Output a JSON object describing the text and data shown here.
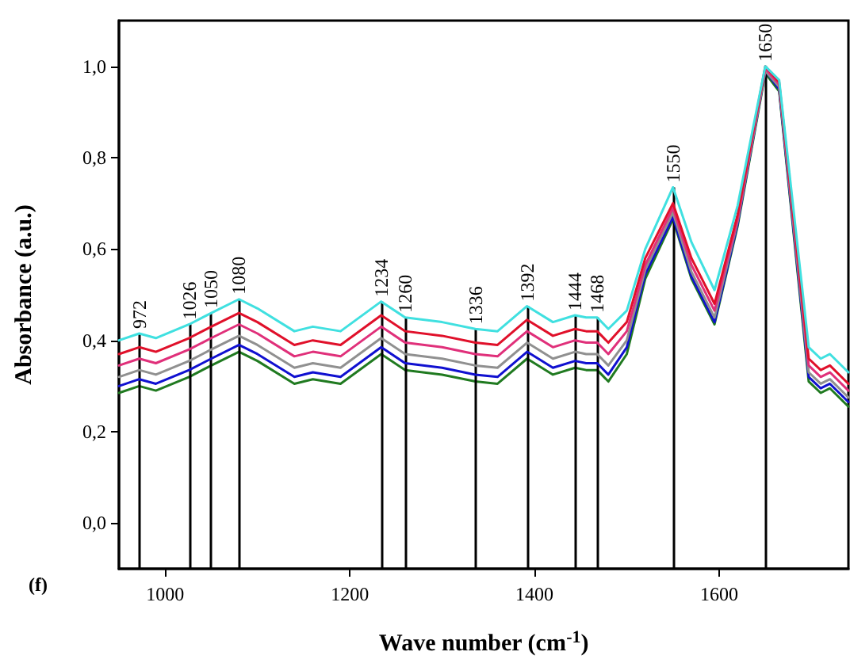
{
  "chart_data": {
    "type": "line",
    "xlabel": "Wave number (cm$^{-1}$)",
    "ylabel": "Absorbance (a.u.)",
    "annotations": [
      "(f)"
    ],
    "x": [
      950,
      972,
      990,
      1026,
      1050,
      1080,
      1100,
      1140,
      1160,
      1190,
      1234,
      1260,
      1300,
      1336,
      1360,
      1392,
      1420,
      1444,
      1456,
      1468,
      1480,
      1500,
      1520,
      1550,
      1570,
      1595,
      1620,
      1650,
      1665,
      1697,
      1710,
      1720,
      1740
    ],
    "xlim": [
      950,
      1740
    ],
    "xticks": [
      1000,
      1200,
      1400,
      1600
    ],
    "ylim": [
      -0.1,
      1.1
    ],
    "yticks": [
      {
        "value": 0,
        "label": "0,0"
      },
      {
        "value": 0.2,
        "label": "0,2"
      },
      {
        "value": 0.4,
        "label": "0,4"
      },
      {
        "value": 0.6,
        "label": "0,6"
      },
      {
        "value": 0.8,
        "label": "0,8"
      },
      {
        "value": 1,
        "label": "1,0"
      }
    ],
    "grid": false,
    "marker": "none",
    "line_style": "solid",
    "series": [
      {
        "color": "#40e0e0",
        "values": [
          0.4,
          0.415,
          0.405,
          0.435,
          0.46,
          0.49,
          0.47,
          0.42,
          0.43,
          0.42,
          0.485,
          0.45,
          0.44,
          0.425,
          0.42,
          0.475,
          0.44,
          0.455,
          0.45,
          0.45,
          0.425,
          0.465,
          0.6,
          0.735,
          0.615,
          0.51,
          0.695,
          1.0,
          0.97,
          0.385,
          0.36,
          0.37,
          0.33
        ]
      },
      {
        "color": "#e0102a",
        "values": [
          0.37,
          0.385,
          0.375,
          0.405,
          0.43,
          0.46,
          0.44,
          0.39,
          0.4,
          0.39,
          0.455,
          0.42,
          0.41,
          0.395,
          0.39,
          0.445,
          0.41,
          0.425,
          0.42,
          0.42,
          0.395,
          0.44,
          0.58,
          0.7,
          0.58,
          0.48,
          0.675,
          1.0,
          0.965,
          0.36,
          0.335,
          0.345,
          0.305
        ]
      },
      {
        "color": "#e0307a",
        "values": [
          0.345,
          0.36,
          0.35,
          0.38,
          0.405,
          0.435,
          0.415,
          0.365,
          0.375,
          0.365,
          0.43,
          0.395,
          0.385,
          0.37,
          0.365,
          0.42,
          0.385,
          0.4,
          0.395,
          0.395,
          0.37,
          0.42,
          0.565,
          0.69,
          0.565,
          0.465,
          0.665,
          0.995,
          0.96,
          0.345,
          0.32,
          0.33,
          0.29
        ]
      },
      {
        "color": "#909090",
        "values": [
          0.32,
          0.335,
          0.325,
          0.355,
          0.38,
          0.41,
          0.39,
          0.34,
          0.35,
          0.34,
          0.405,
          0.37,
          0.36,
          0.345,
          0.34,
          0.395,
          0.36,
          0.375,
          0.37,
          0.37,
          0.345,
          0.4,
          0.555,
          0.68,
          0.55,
          0.45,
          0.66,
          0.99,
          0.955,
          0.33,
          0.305,
          0.315,
          0.275
        ]
      },
      {
        "color": "#1010d0",
        "values": [
          0.3,
          0.315,
          0.305,
          0.335,
          0.36,
          0.39,
          0.37,
          0.32,
          0.33,
          0.32,
          0.385,
          0.35,
          0.34,
          0.325,
          0.32,
          0.375,
          0.34,
          0.355,
          0.35,
          0.35,
          0.325,
          0.385,
          0.545,
          0.67,
          0.54,
          0.44,
          0.655,
          0.99,
          0.95,
          0.32,
          0.295,
          0.305,
          0.265
        ]
      },
      {
        "color": "#207a20",
        "values": [
          0.285,
          0.3,
          0.29,
          0.32,
          0.345,
          0.375,
          0.355,
          0.305,
          0.315,
          0.305,
          0.37,
          0.335,
          0.325,
          0.31,
          0.305,
          0.36,
          0.325,
          0.34,
          0.335,
          0.335,
          0.31,
          0.37,
          0.535,
          0.665,
          0.535,
          0.435,
          0.65,
          0.985,
          0.945,
          0.31,
          0.285,
          0.295,
          0.255
        ]
      }
    ],
    "ref_lines": [
      {
        "axis": "x",
        "value": 972,
        "label": "972"
      },
      {
        "axis": "x",
        "value": 1026,
        "label": "1026"
      },
      {
        "axis": "x",
        "value": 1050,
        "label": "1050"
      },
      {
        "axis": "x",
        "value": 1080,
        "label": "1080"
      },
      {
        "axis": "x",
        "value": 1234,
        "label": "1234"
      },
      {
        "axis": "x",
        "value": 1260,
        "label": "1260"
      },
      {
        "axis": "x",
        "value": 1336,
        "label": "1336"
      },
      {
        "axis": "x",
        "value": 1392,
        "label": "1392"
      },
      {
        "axis": "x",
        "value": 1444,
        "label": "1444"
      },
      {
        "axis": "x",
        "value": 1468,
        "label": "1468"
      },
      {
        "axis": "x",
        "value": 1550,
        "label": "1550"
      },
      {
        "axis": "x",
        "value": 1650,
        "label": "1650"
      }
    ]
  }
}
